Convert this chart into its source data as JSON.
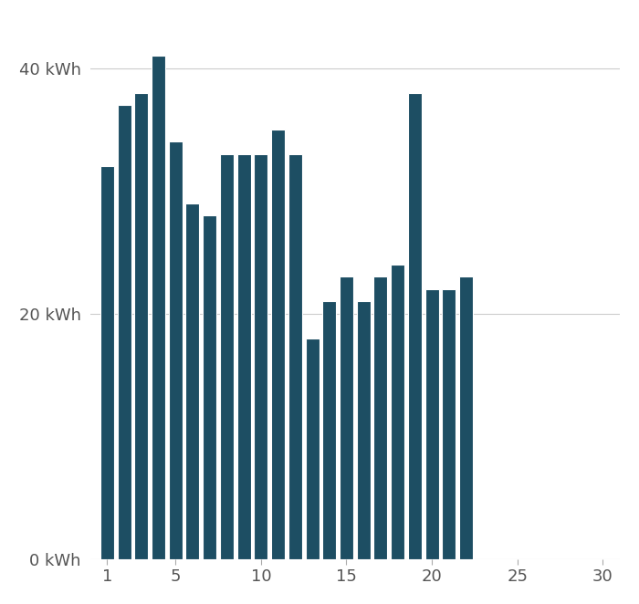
{
  "days": [
    1,
    2,
    3,
    4,
    5,
    6,
    7,
    8,
    9,
    10,
    11,
    12,
    13,
    14,
    15,
    16,
    17,
    18,
    19,
    20,
    21,
    22
  ],
  "values": [
    32,
    37,
    38,
    41,
    34,
    29,
    28,
    33,
    33,
    33,
    35,
    33,
    18,
    21,
    23,
    21,
    23,
    24,
    38,
    22,
    22,
    23
  ],
  "bar_color": "#1d4e63",
  "ytick_labels": [
    "0 kWh",
    "20 kWh",
    "40 kWh"
  ],
  "ytick_values": [
    0,
    20,
    40
  ],
  "ylim": [
    0,
    44
  ],
  "xlim": [
    0,
    31
  ],
  "xtick_values": [
    1,
    5,
    10,
    15,
    20,
    25,
    30
  ],
  "grid_color": "#cccccc",
  "background_color": "#ffffff",
  "bar_width": 0.8,
  "bar_edge_color": "#ffffff"
}
